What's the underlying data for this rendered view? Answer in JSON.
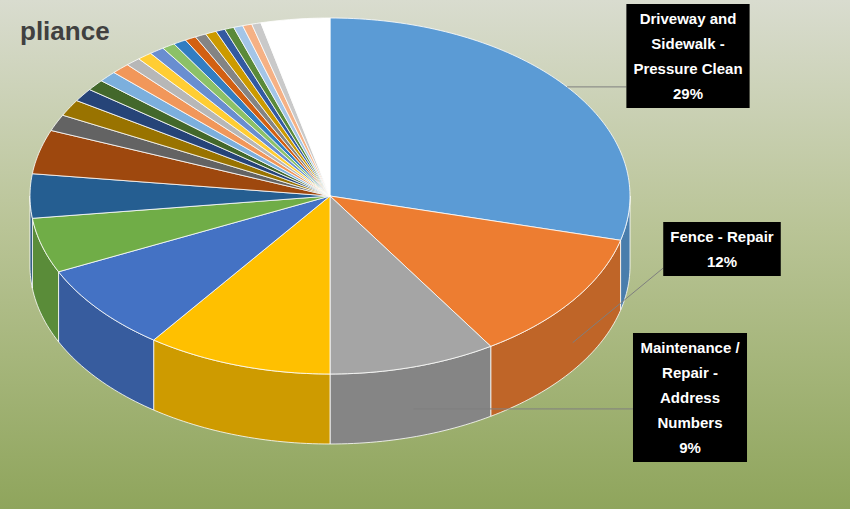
{
  "chart_data": {
    "type": "pie",
    "title": "pliance",
    "categories": [
      "Driveway and Sidewalk - Pressure Clean",
      "Fence - Repair",
      "Maintenance / Repair - Address Numbers",
      null,
      null,
      null,
      null,
      null,
      null,
      null,
      null,
      null,
      null,
      null,
      null,
      null,
      null,
      null,
      null,
      null,
      null,
      null,
      null,
      null,
      null,
      null,
      null,
      null
    ],
    "values": [
      29,
      12,
      9,
      10,
      8,
      5,
      4,
      4,
      1.5,
      1.5,
      1.2,
      1,
      1,
      1,
      0.8,
      0.8,
      0.8,
      0.7,
      0.7,
      0.6,
      0.6,
      0.6,
      0.5,
      0.5,
      0.5,
      0.5,
      0.5,
      3.7
    ],
    "value_labels": [
      "29%",
      "12%",
      "9%",
      null,
      null,
      null,
      null,
      null,
      null,
      null,
      null,
      null,
      null,
      null,
      null,
      null,
      null,
      null,
      null,
      null,
      null,
      null,
      null,
      null,
      null,
      null,
      null,
      null
    ],
    "colors": [
      "#5b9bd5",
      "#ed7d31",
      "#a5a5a5",
      "#ffc000",
      "#4472c4",
      "#70ad47",
      "#255e91",
      "#9e480e",
      "#636363",
      "#997300",
      "#264478",
      "#43682b",
      "#7cafdd",
      "#f1975a",
      "#b7b7b7",
      "#ffcd33",
      "#698ed0",
      "#8cc168",
      "#327dc2",
      "#d26012",
      "#848484",
      "#cc9a00",
      "#335aa1",
      "#5a8a39",
      "#a3c5e7",
      "#f5b185",
      "#c9c9c9",
      "#ffffff"
    ],
    "data_labels": true
  }
}
